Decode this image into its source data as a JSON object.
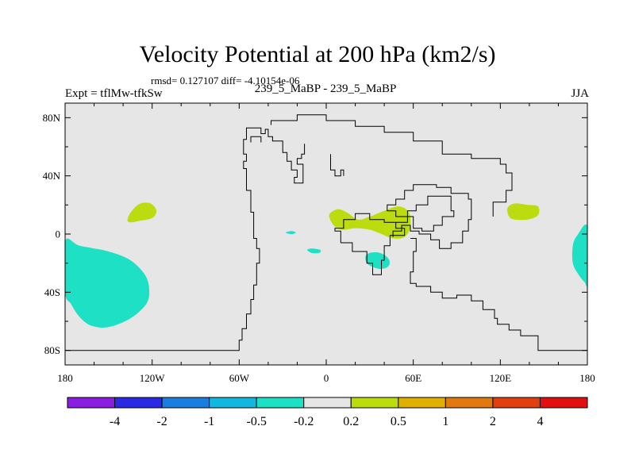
{
  "title": "Velocity Potential at 200 hPa (km2/s)",
  "stats": "rmsd= 0.127107 diff= -4.10154e-06",
  "experiment": "Expt = tflMw-tfkSw",
  "case_label": "239_5_MaBP - 239_5_MaBP",
  "season": "JJA",
  "chart_data": {
    "type": "contour-map",
    "title": "Velocity Potential at 200 hPa (km2/s)",
    "x_range": [
      -180,
      180
    ],
    "y_range": [
      -90,
      90
    ],
    "x_ticks": [
      {
        "value": -180,
        "label": "180"
      },
      {
        "value": -120,
        "label": "120W"
      },
      {
        "value": -60,
        "label": "60W"
      },
      {
        "value": 0,
        "label": "0"
      },
      {
        "value": 60,
        "label": "60E"
      },
      {
        "value": 120,
        "label": "120E"
      },
      {
        "value": 180,
        "label": "180"
      }
    ],
    "y_ticks": [
      {
        "value": 80,
        "label": "80N"
      },
      {
        "value": 40,
        "label": "40N"
      },
      {
        "value": 0,
        "label": "0"
      },
      {
        "value": -40,
        "label": "40S"
      },
      {
        "value": -80,
        "label": "80S"
      }
    ],
    "colorbar": {
      "colors": [
        "#8a1ee0",
        "#2a2ae0",
        "#1a7ee0",
        "#10b8e0",
        "#1ee0c4",
        "#e6e6e6",
        "#bcdc10",
        "#e0b000",
        "#e07a10",
        "#e04010",
        "#e01010"
      ],
      "labels": [
        "-4",
        "-2",
        "-1",
        "-0.5",
        "-0.2",
        "0.2",
        "0.5",
        "1",
        "2",
        "4"
      ]
    },
    "background_color": "#e6e6e6",
    "regions": [
      {
        "level": "-0.5 to -0.2",
        "color": "#1ee0c4",
        "points": [
          [
            -180,
            -5
          ],
          [
            -170,
            -8
          ],
          [
            -150,
            -12
          ],
          [
            -135,
            -18
          ],
          [
            -125,
            -28
          ],
          [
            -122,
            -38
          ],
          [
            -124,
            -48
          ],
          [
            -135,
            -58
          ],
          [
            -150,
            -64
          ],
          [
            -162,
            -63
          ],
          [
            -170,
            -57
          ],
          [
            -176,
            -48
          ],
          [
            -180,
            -40
          ]
        ]
      },
      {
        "level": "0.2 to 0.5",
        "color": "#bcdc10",
        "points": [
          [
            -137,
            10
          ],
          [
            -134,
            16
          ],
          [
            -128,
            21
          ],
          [
            -121,
            21
          ],
          [
            -117,
            16
          ],
          [
            -120,
            11
          ],
          [
            -129,
            9
          ],
          [
            -135,
            8
          ]
        ]
      },
      {
        "level": "0.2 to 0.5",
        "color": "#bcdc10",
        "points": [
          [
            2,
            13
          ],
          [
            8,
            17
          ],
          [
            14,
            15
          ],
          [
            22,
            10
          ],
          [
            30,
            12
          ],
          [
            40,
            16
          ],
          [
            50,
            19
          ],
          [
            57,
            15
          ],
          [
            58,
            5
          ],
          [
            54,
            -2
          ],
          [
            46,
            -3
          ],
          [
            38,
            0
          ],
          [
            30,
            3
          ],
          [
            20,
            4
          ],
          [
            12,
            3
          ],
          [
            6,
            5
          ]
        ]
      },
      {
        "level": "-0.5 to -0.2",
        "color": "#1ee0c4",
        "points": [
          [
            27,
            -16
          ],
          [
            30,
            -13
          ],
          [
            37,
            -13
          ],
          [
            43,
            -17
          ],
          [
            43,
            -22
          ],
          [
            37,
            -24
          ],
          [
            29,
            -21
          ]
        ]
      },
      {
        "level": "-0.5 to -0.2",
        "color": "#1ee0c4",
        "points": [
          [
            -13,
            -11
          ],
          [
            -10,
            -10
          ],
          [
            -4,
            -11
          ],
          [
            -5,
            -13
          ],
          [
            -10,
            -13
          ]
        ]
      },
      {
        "level": "-0.5 to -0.2",
        "color": "#1ee0c4",
        "points": [
          [
            -28,
            1
          ],
          [
            -24,
            2
          ],
          [
            -21,
            1
          ],
          [
            -24,
            0
          ]
        ]
      },
      {
        "level": "0.2 to 0.5",
        "color": "#bcdc10",
        "points": [
          [
            125,
            18
          ],
          [
            130,
            21
          ],
          [
            139,
            20
          ],
          [
            146,
            19
          ],
          [
            146,
            13
          ],
          [
            139,
            10
          ],
          [
            130,
            10
          ],
          [
            126,
            12
          ]
        ]
      },
      {
        "level": "-0.5 to -0.2",
        "color": "#1ee0c4",
        "points": [
          [
            180,
            5
          ],
          [
            173,
            -1
          ],
          [
            170,
            -8
          ],
          [
            170,
            -20
          ],
          [
            174,
            -28
          ],
          [
            178,
            -33
          ],
          [
            180,
            -33
          ]
        ]
      }
    ],
    "coastlines": [
      {
        "name": "americas",
        "points": [
          [
            -180,
            -80
          ],
          [
            -60,
            -80
          ],
          [
            -60,
            -73
          ],
          [
            -58,
            -73
          ],
          [
            -58,
            -65
          ],
          [
            -55,
            -65
          ],
          [
            -55,
            -55
          ],
          [
            -52,
            -55
          ],
          [
            -52,
            -45
          ],
          [
            -50,
            -45
          ],
          [
            -50,
            -35
          ],
          [
            -48,
            -35
          ],
          [
            -48,
            -20
          ],
          [
            -46,
            -20
          ],
          [
            -46,
            -10
          ],
          [
            -48,
            -10
          ],
          [
            -48,
            -3
          ],
          [
            -50,
            -3
          ],
          [
            -50,
            15
          ],
          [
            -52,
            15
          ],
          [
            -52,
            30
          ],
          [
            -55,
            30
          ],
          [
            -55,
            45
          ],
          [
            -57,
            45
          ],
          [
            -57,
            50
          ],
          [
            -55,
            50
          ],
          [
            -55,
            55
          ],
          [
            -57,
            55
          ],
          [
            -57,
            65
          ],
          [
            -55,
            65
          ],
          [
            -55,
            73
          ],
          [
            -45,
            73
          ],
          [
            -45,
            69
          ],
          [
            -42,
            69
          ],
          [
            -42,
            72
          ],
          [
            -40,
            72
          ],
          [
            -40,
            67
          ],
          [
            -37,
            67
          ],
          [
            -37,
            64
          ],
          [
            -30,
            64
          ],
          [
            -30,
            56
          ],
          [
            -27,
            56
          ],
          [
            -27,
            50
          ],
          [
            -24,
            50
          ],
          [
            -24,
            44
          ],
          [
            -20,
            44
          ],
          [
            -20,
            39
          ],
          [
            -22,
            39
          ],
          [
            -22,
            35
          ],
          [
            -16,
            35
          ],
          [
            -16,
            48
          ],
          [
            -20,
            48
          ],
          [
            -20,
            52
          ],
          [
            -17,
            52
          ],
          [
            -17,
            55
          ],
          [
            -15,
            55
          ],
          [
            -15,
            62
          ]
        ]
      },
      {
        "name": "baffin",
        "points": [
          [
            -52,
            63
          ],
          [
            -52,
            67
          ],
          [
            -45,
            67
          ],
          [
            -45,
            63
          ]
        ]
      },
      {
        "name": "arctic-eurasia",
        "points": [
          [
            -38,
            75
          ],
          [
            -38,
            78
          ],
          [
            -20,
            78
          ],
          [
            -20,
            82
          ],
          [
            0,
            82
          ],
          [
            0,
            78
          ],
          [
            20,
            78
          ],
          [
            20,
            74
          ],
          [
            40,
            74
          ],
          [
            40,
            70
          ],
          [
            60,
            70
          ],
          [
            60,
            64
          ],
          [
            80,
            64
          ],
          [
            80,
            55
          ],
          [
            100,
            55
          ],
          [
            100,
            52
          ],
          [
            120,
            52
          ],
          [
            120,
            48
          ],
          [
            124,
            48
          ],
          [
            124,
            42
          ],
          [
            128,
            42
          ],
          [
            128,
            30
          ],
          [
            124,
            30
          ],
          [
            124,
            22
          ],
          [
            115,
            22
          ],
          [
            115,
            12
          ]
        ]
      },
      {
        "name": "iberia",
        "points": [
          [
            3,
            55
          ],
          [
            3,
            44
          ],
          [
            6,
            44
          ],
          [
            6,
            40
          ],
          [
            10,
            40
          ],
          [
            10,
            44
          ],
          [
            12,
            44
          ],
          [
            12,
            40
          ]
        ]
      },
      {
        "name": "africa",
        "points": [
          [
            10,
            -6
          ],
          [
            18,
            -6
          ],
          [
            18,
            -12
          ],
          [
            28,
            -12
          ],
          [
            28,
            -20
          ],
          [
            32,
            -20
          ],
          [
            32,
            -28
          ],
          [
            38,
            -28
          ],
          [
            38,
            -18
          ],
          [
            40,
            -18
          ],
          [
            40,
            -8
          ],
          [
            44,
            -8
          ],
          [
            44,
            -1
          ],
          [
            54,
            -1
          ],
          [
            54,
            4
          ],
          [
            48,
            4
          ],
          [
            48,
            8
          ],
          [
            40,
            8
          ],
          [
            40,
            10
          ],
          [
            30,
            10
          ],
          [
            30,
            14
          ],
          [
            20,
            14
          ],
          [
            20,
            10
          ],
          [
            12,
            10
          ],
          [
            12,
            4
          ],
          [
            6,
            4
          ],
          [
            6,
            2
          ],
          [
            10,
            2
          ],
          [
            10,
            -6
          ]
        ]
      },
      {
        "name": "arabia",
        "points": [
          [
            46,
            -2
          ],
          [
            46,
            2
          ],
          [
            52,
            2
          ],
          [
            52,
            6
          ],
          [
            58,
            6
          ],
          [
            58,
            2
          ],
          [
            64,
            2
          ],
          [
            64,
            0
          ],
          [
            72,
            0
          ],
          [
            72,
            -4
          ],
          [
            78,
            -4
          ],
          [
            78,
            -10
          ],
          [
            86,
            -10
          ],
          [
            86,
            -6
          ],
          [
            94,
            -6
          ],
          [
            94,
            2
          ],
          [
            98,
            2
          ],
          [
            98,
            10
          ],
          [
            100,
            10
          ],
          [
            100,
            24
          ],
          [
            98,
            24
          ],
          [
            98,
            28
          ],
          [
            86,
            28
          ],
          [
            86,
            32
          ],
          [
            76,
            32
          ],
          [
            76,
            34
          ],
          [
            60,
            34
          ],
          [
            60,
            30
          ],
          [
            54,
            30
          ],
          [
            54,
            24
          ],
          [
            48,
            24
          ],
          [
            48,
            20
          ],
          [
            42,
            20
          ],
          [
            42,
            16
          ],
          [
            48,
            16
          ],
          [
            48,
            12
          ],
          [
            60,
            12
          ],
          [
            60,
            4
          ],
          [
            66,
            4
          ],
          [
            66,
            2
          ],
          [
            74,
            2
          ],
          [
            74,
            6
          ],
          [
            80,
            6
          ],
          [
            80,
            12
          ],
          [
            88,
            12
          ],
          [
            88,
            16
          ],
          [
            86,
            16
          ],
          [
            86,
            26
          ],
          [
            70,
            26
          ],
          [
            70,
            20
          ],
          [
            62,
            20
          ],
          [
            62,
            16
          ],
          [
            56,
            16
          ],
          [
            56,
            8
          ],
          [
            48,
            8
          ]
        ]
      },
      {
        "name": "indonesia-australia",
        "points": [
          [
            58,
            -3
          ],
          [
            62,
            -3
          ],
          [
            62,
            -12
          ],
          [
            60,
            -12
          ],
          [
            60,
            -26
          ],
          [
            58,
            -26
          ],
          [
            58,
            -34
          ],
          [
            62,
            -34
          ],
          [
            62,
            -36
          ],
          [
            72,
            -36
          ],
          [
            72,
            -40
          ],
          [
            80,
            -40
          ],
          [
            80,
            -44
          ],
          [
            90,
            -44
          ],
          [
            90,
            -42
          ],
          [
            100,
            -42
          ],
          [
            100,
            -46
          ],
          [
            108,
            -46
          ],
          [
            108,
            -52
          ],
          [
            116,
            -52
          ],
          [
            116,
            -58
          ],
          [
            118,
            -58
          ],
          [
            118,
            -62
          ],
          [
            126,
            -62
          ],
          [
            126,
            -66
          ],
          [
            134,
            -66
          ],
          [
            134,
            -70
          ],
          [
            146,
            -70
          ],
          [
            146,
            -80
          ],
          [
            180,
            -80
          ]
        ]
      }
    ]
  }
}
